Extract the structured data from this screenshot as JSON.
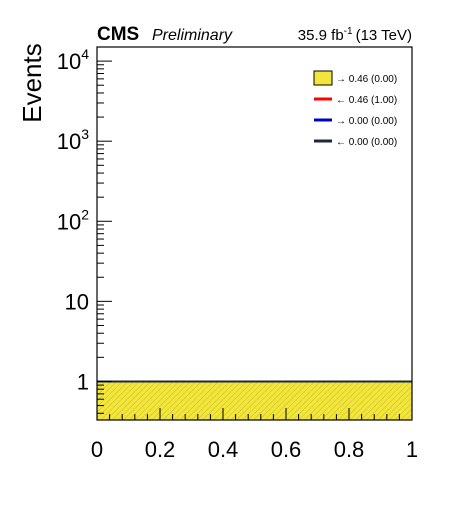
{
  "header": {
    "experiment": "CMS",
    "status": "Preliminary",
    "lumi_value": "35.9 fb",
    "lumi_exp": "-1",
    "energy": "(13 TeV)"
  },
  "chart_data": {
    "type": "histogram",
    "ylabel": "Events",
    "xlabel": "",
    "xlim": [
      0,
      1
    ],
    "ylim": [
      0.33,
      15000
    ],
    "yscale": "log",
    "grid": false,
    "x_ticks": [
      {
        "value": 0,
        "label": "0"
      },
      {
        "value": 0.2,
        "label": "0.2"
      },
      {
        "value": 0.4,
        "label": "0.4"
      },
      {
        "value": 0.6,
        "label": "0.6"
      },
      {
        "value": 0.8,
        "label": "0.8"
      },
      {
        "value": 1,
        "label": "1"
      }
    ],
    "y_ticks": [
      {
        "value": 1,
        "base": "1",
        "exp": ""
      },
      {
        "value": 10,
        "base": "10",
        "exp": ""
      },
      {
        "value": 100,
        "base": "10",
        "exp": "2"
      },
      {
        "value": 1000,
        "base": "10",
        "exp": "3"
      },
      {
        "value": 10000,
        "base": "10",
        "exp": "4"
      }
    ],
    "legend_position": "top-right",
    "series": [
      {
        "name": "→ 0.46 (0.00)",
        "style": "filled",
        "color": "#f2e53c",
        "edge": "#000000",
        "bins": [
          0,
          1
        ],
        "values": [
          1
        ]
      },
      {
        "name": "← 0.46 (1.00)",
        "style": "line",
        "color": "#ff0000",
        "bins": [
          0,
          1
        ],
        "values": [
          1
        ]
      },
      {
        "name": "→ 0.00 (0.00)",
        "style": "line",
        "color": "#0000cc",
        "bins": [
          0,
          1
        ],
        "values": [
          1
        ]
      },
      {
        "name": "← 0.00 (0.00)",
        "style": "line",
        "color": "#1a2a3a",
        "bins": [
          0,
          1
        ],
        "values": [
          1
        ]
      }
    ]
  }
}
